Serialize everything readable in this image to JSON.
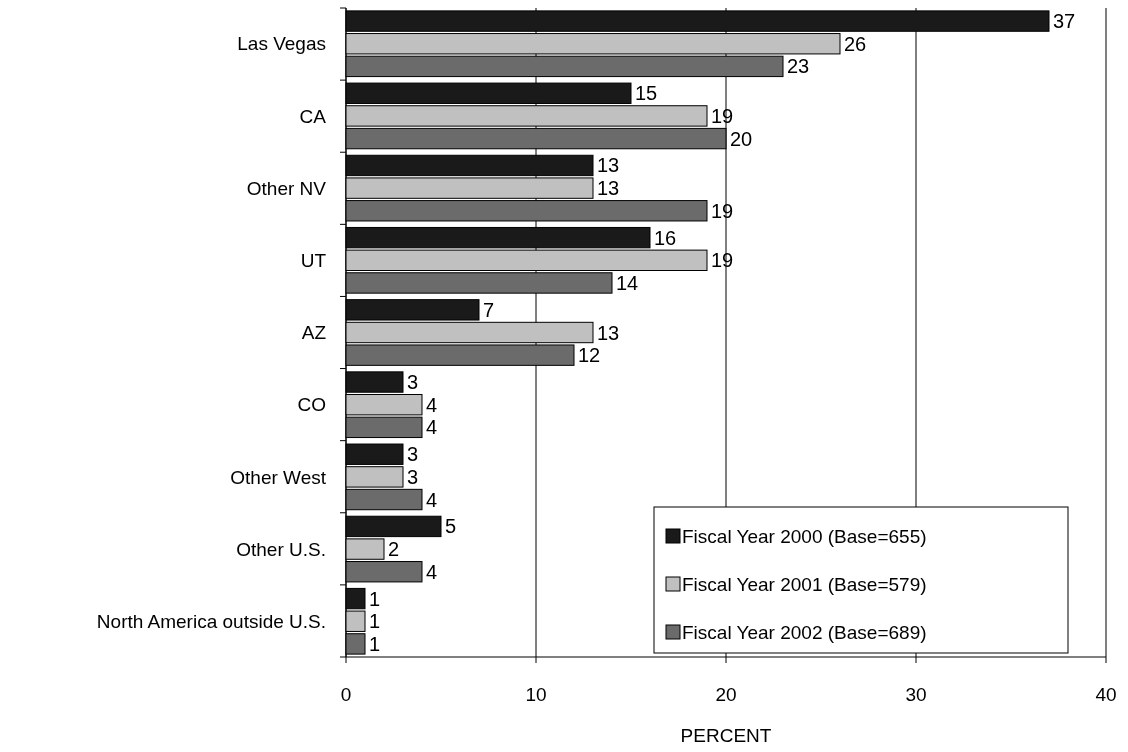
{
  "chart_data": {
    "type": "bar",
    "orientation": "horizontal",
    "xlabel": "PERCENT",
    "categories": [
      "Las Vegas",
      "CA",
      "Other NV",
      "UT",
      "AZ",
      "CO",
      "Other West",
      "Other U.S.",
      "North America outside U.S."
    ],
    "series": [
      {
        "name": "Fiscal Year 2000 (Base=655)",
        "color": "#1a1a1a",
        "values": [
          37,
          15,
          13,
          16,
          7,
          3,
          3,
          5,
          1
        ]
      },
      {
        "name": "Fiscal Year 2001 (Base=579)",
        "color": "#c0c0c0",
        "values": [
          26,
          19,
          13,
          19,
          13,
          4,
          3,
          2,
          1
        ]
      },
      {
        "name": "Fiscal Year 2002 (Base=689)",
        "color": "#6b6b6b",
        "values": [
          23,
          20,
          19,
          14,
          12,
          4,
          4,
          4,
          1
        ]
      }
    ],
    "xlim": [
      0,
      40
    ],
    "xticks": [
      0,
      10,
      20,
      30,
      40
    ],
    "grid": "x",
    "legend": "bottom right",
    "data_labels": true
  }
}
